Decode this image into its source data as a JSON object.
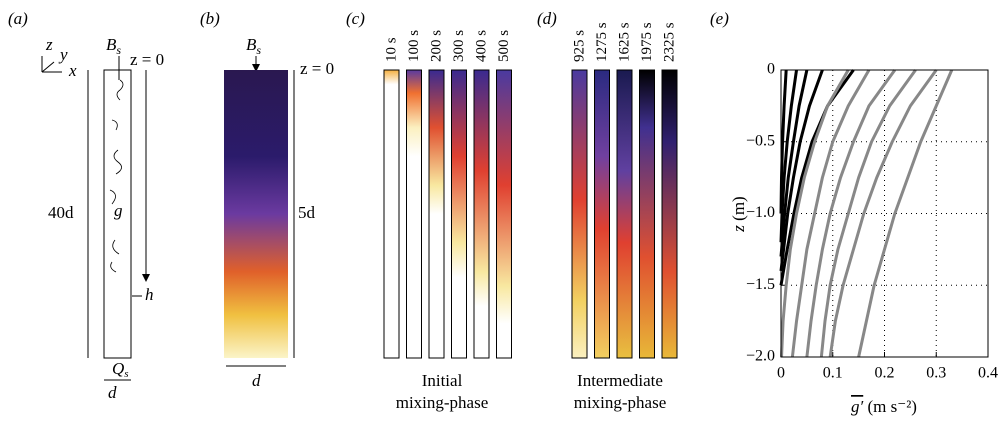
{
  "panels": {
    "a": {
      "label": "(a)",
      "axis_z": "z",
      "axis_y": "y",
      "axis_x": "x",
      "source": {
        "main": "B",
        "sub": "s"
      },
      "origin": "z = 0",
      "length": "40d",
      "gravity": "g",
      "depth": "h",
      "outflow": {
        "main": "Q",
        "sub": "s"
      },
      "width": "d"
    },
    "b": {
      "label": "(b)",
      "source": {
        "main": "B",
        "sub": "s"
      },
      "origin": "z = 0",
      "length": "5d",
      "width": "d"
    },
    "c": {
      "label": "(c)",
      "times": [
        "10 s",
        "100 s",
        "200 s",
        "300 s",
        "400 s",
        "500 s"
      ],
      "caption": [
        "Initial",
        "mixing-phase"
      ]
    },
    "d": {
      "label": "(d)",
      "times": [
        "925 s",
        "1275 s",
        "1625 s",
        "1975 s",
        "2325 s"
      ],
      "caption": [
        "Intermediate",
        "mixing-phase"
      ]
    }
  },
  "chart_data": {
    "type": "line",
    "label": "(e)",
    "y_label": {
      "var": "z",
      "unit": "(m)"
    },
    "x_label": {
      "var": "g′",
      "unit": "(m s⁻²)"
    },
    "xlim": [
      0,
      0.4
    ],
    "ylim": [
      -2.0,
      0
    ],
    "xticks": [
      0,
      0.1,
      0.2,
      0.3,
      0.4
    ],
    "yticks": [
      {
        "value": -2.0,
        "label": "−2.0"
      },
      {
        "value": -1.5,
        "label": "−1.5"
      },
      {
        "value": -1.0,
        "label": "−1.0"
      },
      {
        "value": -0.5,
        "label": "−0.5"
      },
      0
    ],
    "grid": true,
    "series": [
      {
        "color": "#000000",
        "x": [
          0.01,
          0.006,
          0.003,
          0.001,
          0
        ],
        "values": [
          0,
          -0.25,
          -0.5,
          -0.75,
          -1.0
        ]
      },
      {
        "color": "#000000",
        "x": [
          0.03,
          0.02,
          0.012,
          0.006,
          0.002,
          0
        ],
        "values": [
          0,
          -0.25,
          -0.5,
          -0.75,
          -1.0,
          -1.2
        ]
      },
      {
        "color": "#000000",
        "x": [
          0.05,
          0.035,
          0.024,
          0.014,
          0.007,
          0
        ],
        "values": [
          0,
          -0.25,
          -0.5,
          -0.75,
          -1.0,
          -1.3
        ]
      },
      {
        "color": "#000000",
        "x": [
          0.08,
          0.055,
          0.037,
          0.024,
          0.013,
          0.005,
          0
        ],
        "values": [
          0,
          -0.25,
          -0.5,
          -0.75,
          -1.0,
          -1.25,
          -1.4
        ]
      },
      {
        "color": "#000000",
        "x": [
          0.14,
          0.09,
          0.06,
          0.04,
          0.025,
          0.012,
          0
        ],
        "values": [
          0,
          -0.25,
          -0.5,
          -0.75,
          -1.0,
          -1.25,
          -1.5
        ]
      },
      {
        "color": "#888888",
        "x": [
          0.13,
          0.09,
          0.065,
          0.045,
          0.03,
          0.018,
          0.01,
          0.004,
          0.001
        ],
        "values": [
          0,
          -0.25,
          -0.5,
          -0.75,
          -1.0,
          -1.25,
          -1.5,
          -1.75,
          -2.0
        ]
      },
      {
        "color": "#888888",
        "x": [
          0.17,
          0.13,
          0.1,
          0.08,
          0.065,
          0.05,
          0.04,
          0.03,
          0.022
        ],
        "values": [
          0,
          -0.25,
          -0.5,
          -0.75,
          -1.0,
          -1.25,
          -1.5,
          -1.75,
          -2.0
        ]
      },
      {
        "color": "#888888",
        "x": [
          0.22,
          0.17,
          0.14,
          0.115,
          0.095,
          0.08,
          0.068,
          0.058,
          0.05
        ],
        "values": [
          0,
          -0.25,
          -0.5,
          -0.75,
          -1.0,
          -1.25,
          -1.5,
          -1.75,
          -2.0
        ]
      },
      {
        "color": "#888888",
        "x": [
          0.26,
          0.21,
          0.175,
          0.15,
          0.13,
          0.11,
          0.095,
          0.085,
          0.078
        ],
        "values": [
          0,
          -0.25,
          -0.5,
          -0.75,
          -1.0,
          -1.25,
          -1.5,
          -1.75,
          -2.0
        ]
      },
      {
        "color": "#888888",
        "x": [
          0.3,
          0.25,
          0.215,
          0.185,
          0.16,
          0.14,
          0.12,
          0.105,
          0.095
        ],
        "values": [
          0,
          -0.25,
          -0.5,
          -0.75,
          -1.0,
          -1.25,
          -1.5,
          -1.75,
          -2.0
        ]
      },
      {
        "color": "#888888",
        "x": [
          0.33,
          0.3,
          0.27,
          0.245,
          0.22,
          0.2,
          0.18,
          0.165,
          0.15
        ],
        "values": [
          0,
          -0.25,
          -0.5,
          -0.75,
          -1.0,
          -1.25,
          -1.5,
          -1.75,
          -2.0
        ]
      }
    ]
  }
}
